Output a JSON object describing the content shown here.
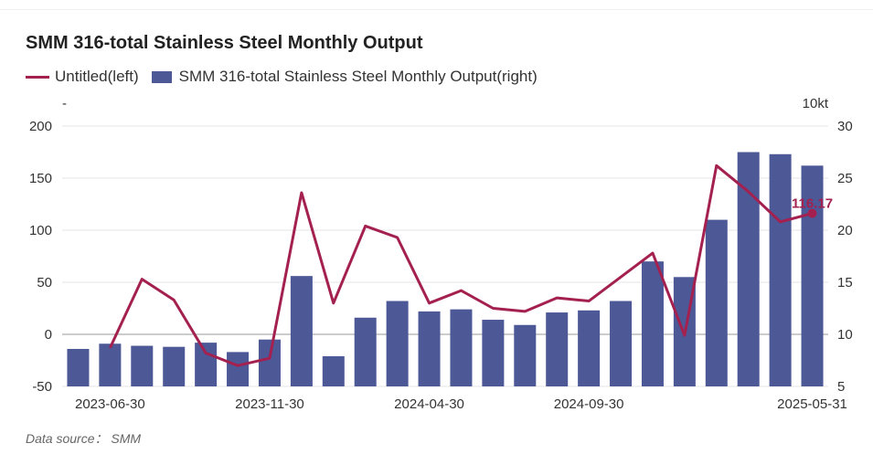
{
  "page": {
    "title": "SMM 316-total Stainless Steel Monthly Output",
    "source": "Data source： SMM"
  },
  "colors": {
    "line": "#a3204f",
    "bar": "#4d5897",
    "grid": "#e4e4e4",
    "axis_text": "#333333"
  },
  "chart_data": {
    "type": "bar",
    "title": "SMM 316-total Stainless Steel Monthly Output",
    "legend_position": "top-left",
    "grid": true,
    "x_tick_labels": [
      "2023-06-30",
      "2023-11-30",
      "2024-04-30",
      "2024-09-30",
      "2025-05-31"
    ],
    "x_tick_indices": [
      1,
      6,
      11,
      16,
      23
    ],
    "left_axis": {
      "unit": "-",
      "ylim": [
        -50,
        200
      ],
      "ticks": [
        -50,
        0,
        50,
        100,
        150,
        200
      ]
    },
    "right_axis": {
      "unit": "10kt",
      "ylim": [
        5,
        30
      ],
      "ticks": [
        5,
        10,
        15,
        20,
        25,
        30
      ]
    },
    "series": [
      {
        "name": "Untitled(left)",
        "type": "line",
        "axis": "left",
        "start_index": 1,
        "values": [
          -13,
          53,
          33,
          -18,
          -30,
          -23,
          136,
          30,
          104,
          93,
          30,
          42,
          25,
          22,
          35,
          32,
          55,
          78,
          -1,
          162,
          137,
          108,
          116.17
        ],
        "annotation": {
          "index": 23,
          "label": "116.17"
        }
      },
      {
        "name": "SMM 316-total Stainless Steel Monthly Output(right)",
        "type": "bar",
        "axis": "right",
        "start_index": 0,
        "values": [
          8.6,
          9.1,
          8.9,
          8.8,
          9.2,
          8.3,
          9.5,
          15.6,
          7.9,
          11.6,
          13.2,
          12.2,
          12.4,
          11.4,
          10.9,
          12.1,
          12.3,
          13.2,
          17.0,
          15.5,
          21.0,
          27.5,
          27.3,
          26.2
        ]
      }
    ]
  }
}
